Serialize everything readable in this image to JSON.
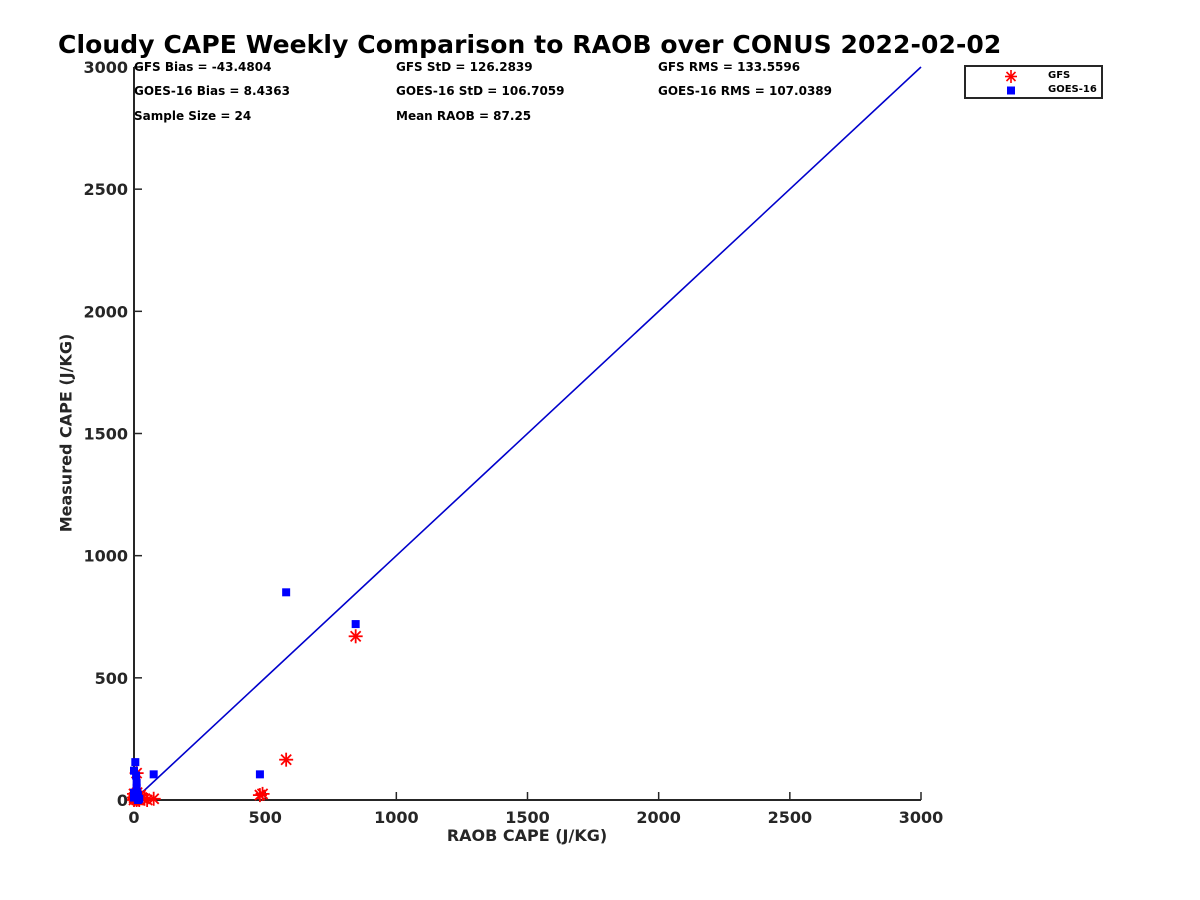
{
  "chart_data": {
    "type": "scatter",
    "title": "Cloudy CAPE Weekly Comparison to RAOB over CONUS 2022-02-02",
    "xlabel": "RAOB CAPE (J/KG)",
    "ylabel": "Measured CAPE (J/KG)",
    "xlim": [
      0,
      3000
    ],
    "ylim": [
      0,
      3000
    ],
    "xticks": [
      "0",
      "500",
      "1000",
      "1500",
      "2000",
      "2500",
      "3000"
    ],
    "yticks": [
      "0",
      "500",
      "1000",
      "1500",
      "2000",
      "2500",
      "3000"
    ],
    "grid": false,
    "legend_position": "outside top-right",
    "reference_line": {
      "from": [
        0,
        0
      ],
      "to": [
        3000,
        3000
      ],
      "color": "#0000cc"
    },
    "stats": {
      "gfs_bias": "GFS Bias = -43.4804",
      "gfs_std": "GFS StD = 126.2839",
      "gfs_rms": "GFS RMS = 133.5596",
      "goes_bias": "GOES-16 Bias = 8.4363",
      "goes_std": "GOES-16 StD = 106.7059",
      "goes_rms": "GOES-16 RMS = 107.0389",
      "sample_size": "Sample Size = 24",
      "mean_raob": "Mean RAOB = 87.25"
    },
    "series": [
      {
        "name": "GFS",
        "marker": "asterisk",
        "color": "#ff0000",
        "points": [
          [
            0,
            0
          ],
          [
            0,
            10
          ],
          [
            0,
            25
          ],
          [
            3,
            5
          ],
          [
            5,
            15
          ],
          [
            8,
            8
          ],
          [
            10,
            0
          ],
          [
            12,
            30
          ],
          [
            15,
            5
          ],
          [
            20,
            0
          ],
          [
            10,
            110
          ],
          [
            25,
            20
          ],
          [
            30,
            10
          ],
          [
            40,
            5
          ],
          [
            50,
            0
          ],
          [
            75,
            5
          ],
          [
            480,
            20
          ],
          [
            490,
            25
          ],
          [
            580,
            165
          ],
          [
            845,
            670
          ]
        ]
      },
      {
        "name": "GOES-16",
        "marker": "square",
        "color": "#0000ff",
        "points": [
          [
            0,
            120
          ],
          [
            0,
            30
          ],
          [
            0,
            10
          ],
          [
            5,
            155
          ],
          [
            8,
            100
          ],
          [
            10,
            70
          ],
          [
            10,
            50
          ],
          [
            12,
            30
          ],
          [
            15,
            20
          ],
          [
            15,
            0
          ],
          [
            20,
            5
          ],
          [
            75,
            105
          ],
          [
            480,
            105
          ],
          [
            580,
            850
          ],
          [
            845,
            720
          ]
        ]
      }
    ]
  }
}
